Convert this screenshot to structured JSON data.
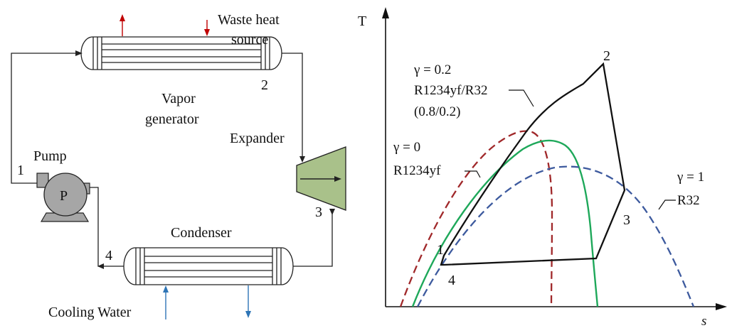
{
  "left": {
    "waste_heat_line1": "Waste heat",
    "waste_heat_line2": "source",
    "vapor_line1": "Vapor",
    "vapor_line2": "generator",
    "expander": "Expander",
    "pump": "Pump",
    "pump_symbol": "P",
    "condenser": "Condenser",
    "cooling_water": "Cooling Water",
    "state_1": "1",
    "state_2": "2",
    "state_3": "3",
    "state_4": "4"
  },
  "right": {
    "axis_y": "T",
    "axis_x": "s",
    "pt_1": "1",
    "pt_2": "2",
    "pt_3": "3",
    "pt_4": "4",
    "gamma02": "γ = 0.2",
    "mix_name": "R1234yf/R32",
    "mix_ratio": "(0.8/0.2)",
    "gamma0": "γ = 0",
    "r1234yf": "R1234yf",
    "gamma1": "γ = 1",
    "r32": "R32"
  },
  "colors": {
    "line": "#222222",
    "hot_arrow": "#c00000",
    "cold_arrow": "#2e75b6",
    "expander_fill": "#a9c18a",
    "pump_fill": "#a6a6a6",
    "dome_r1234yf": "#a0282a",
    "dome_mix": "#1ea85a",
    "dome_r32": "#3d5a9e"
  }
}
